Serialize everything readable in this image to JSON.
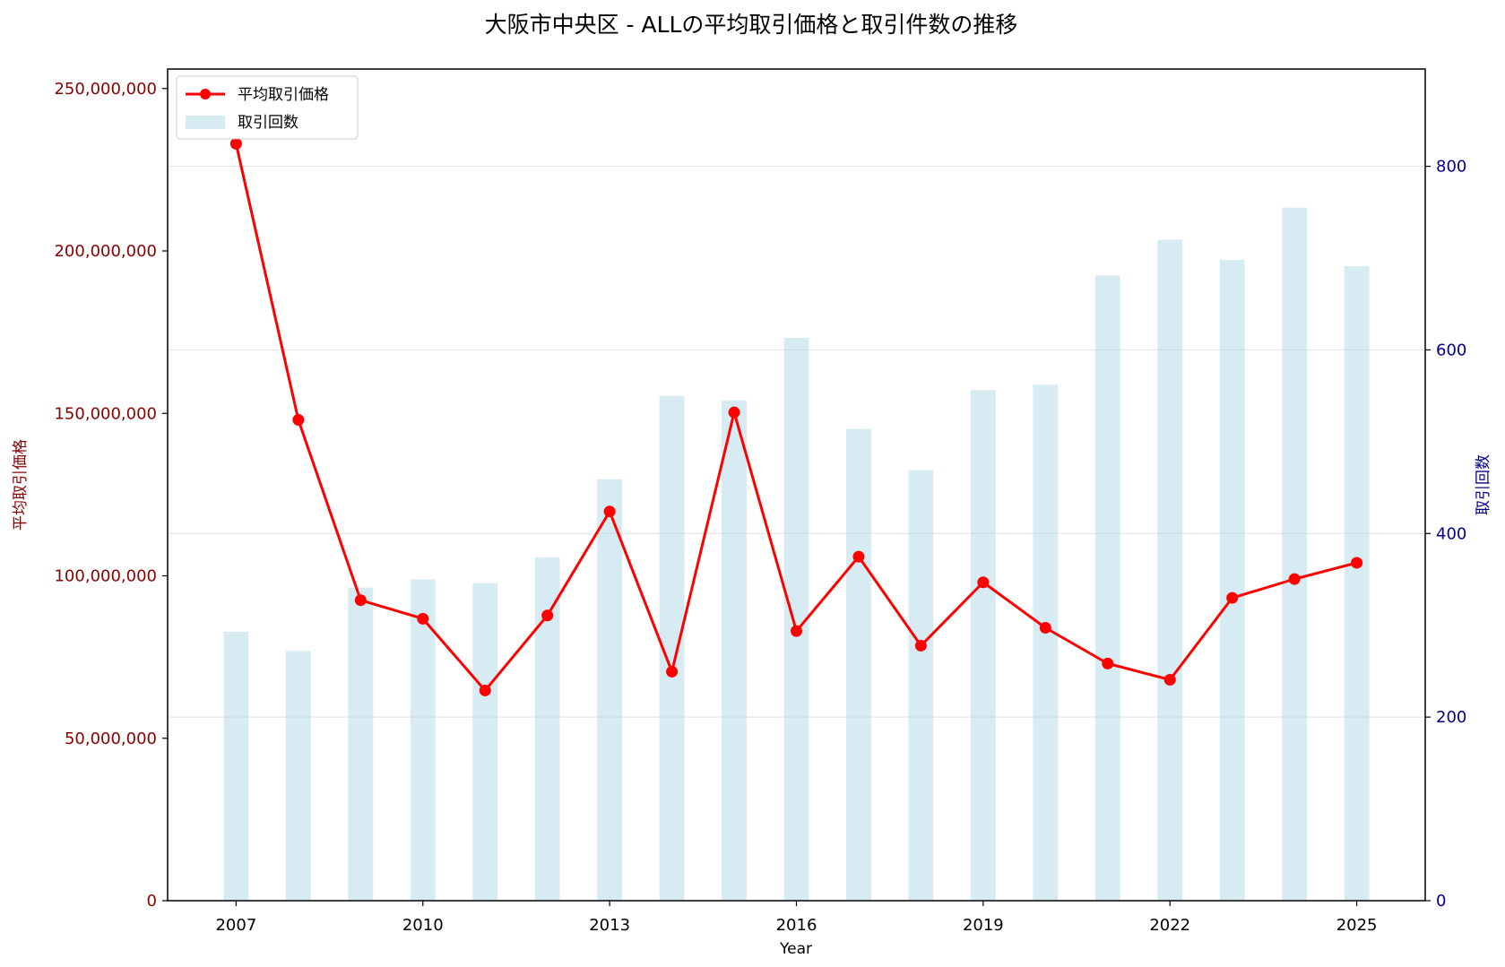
{
  "chart_data": {
    "type": "bar+line",
    "title": "大阪市中央区 - ALLの平均取引価格と取引件数の推移",
    "xlabel": "Year",
    "ylabel_left": "平均取引価格",
    "ylabel_right": "取引回数",
    "x": [
      2007,
      2008,
      2009,
      2010,
      2011,
      2012,
      2013,
      2014,
      2015,
      2016,
      2017,
      2018,
      2019,
      2020,
      2021,
      2022,
      2023,
      2024,
      2025
    ],
    "x_ticks": [
      "2007",
      "2010",
      "2013",
      "2016",
      "2019",
      "2022",
      "2025"
    ],
    "x_tick_values": [
      2007,
      2010,
      2013,
      2016,
      2019,
      2022,
      2025
    ],
    "xlim": [
      2005.9,
      2026.1
    ],
    "left_ticks": [
      "0",
      "50,000,000",
      "100,000,000",
      "150,000,000",
      "200,000,000",
      "250,000,000"
    ],
    "left_tick_values": [
      0,
      50000000,
      100000000,
      150000000,
      200000000,
      250000000
    ],
    "ylim_left": [
      0,
      256000000
    ],
    "right_ticks": [
      "0",
      "200",
      "400",
      "600",
      "800"
    ],
    "right_tick_values": [
      0,
      200,
      400,
      600,
      800
    ],
    "ylim_right": [
      0,
      906
    ],
    "grid": "horizontal (right axis)",
    "legend_position": "top-left",
    "series": [
      {
        "name": "平均取引価格",
        "axis": "left",
        "kind": "line",
        "color": "#ff0000",
        "values": [
          233000000,
          148000000,
          92500000,
          86800000,
          64700000,
          87800000,
          119800000,
          70500000,
          150300000,
          83000000,
          105900000,
          78500000,
          98000000,
          84000000,
          73000000,
          68000000,
          93200000,
          99000000,
          104000000
        ]
      },
      {
        "name": "取引回数",
        "axis": "right",
        "kind": "bar",
        "color": "#add8e6",
        "values": [
          293,
          272,
          341,
          350,
          346,
          374,
          459,
          550,
          545,
          613,
          514,
          469,
          556,
          562,
          681,
          720,
          698,
          755,
          691
        ]
      }
    ]
  }
}
